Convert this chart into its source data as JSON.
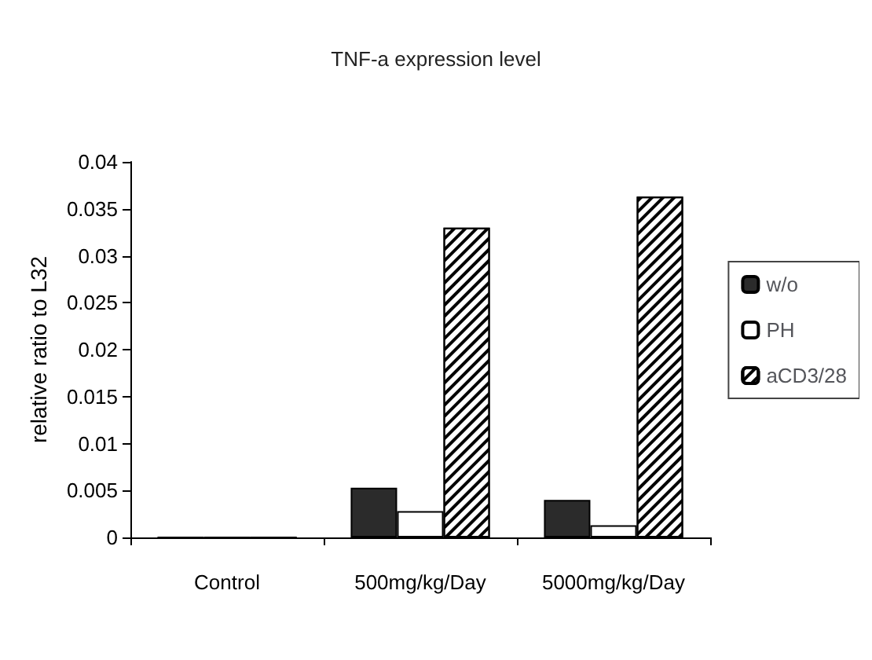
{
  "chart_data": {
    "type": "bar",
    "title": "TNF-a expression level",
    "ylabel": "relative ratio to L32",
    "categories": [
      "Control",
      "500mg/kg/Day",
      "5000mg/kg/Day"
    ],
    "series": [
      {
        "name": "w/o",
        "color": "#2b2b2b",
        "values": [
          0,
          0.0053,
          0.004
        ]
      },
      {
        "name": "PH",
        "color": "#ffffff",
        "values": [
          0,
          0.0028,
          0.0013
        ]
      },
      {
        "name": "aCD3/28",
        "color": "#ffffff",
        "values": [
          0,
          0.033,
          0.0363
        ]
      }
    ],
    "ylim": [
      0,
      0.04
    ],
    "yticks": [
      0,
      0.005,
      0.01,
      0.015,
      0.02,
      0.025,
      0.03,
      0.035,
      0.04
    ],
    "grid": false,
    "legend": "right"
  }
}
